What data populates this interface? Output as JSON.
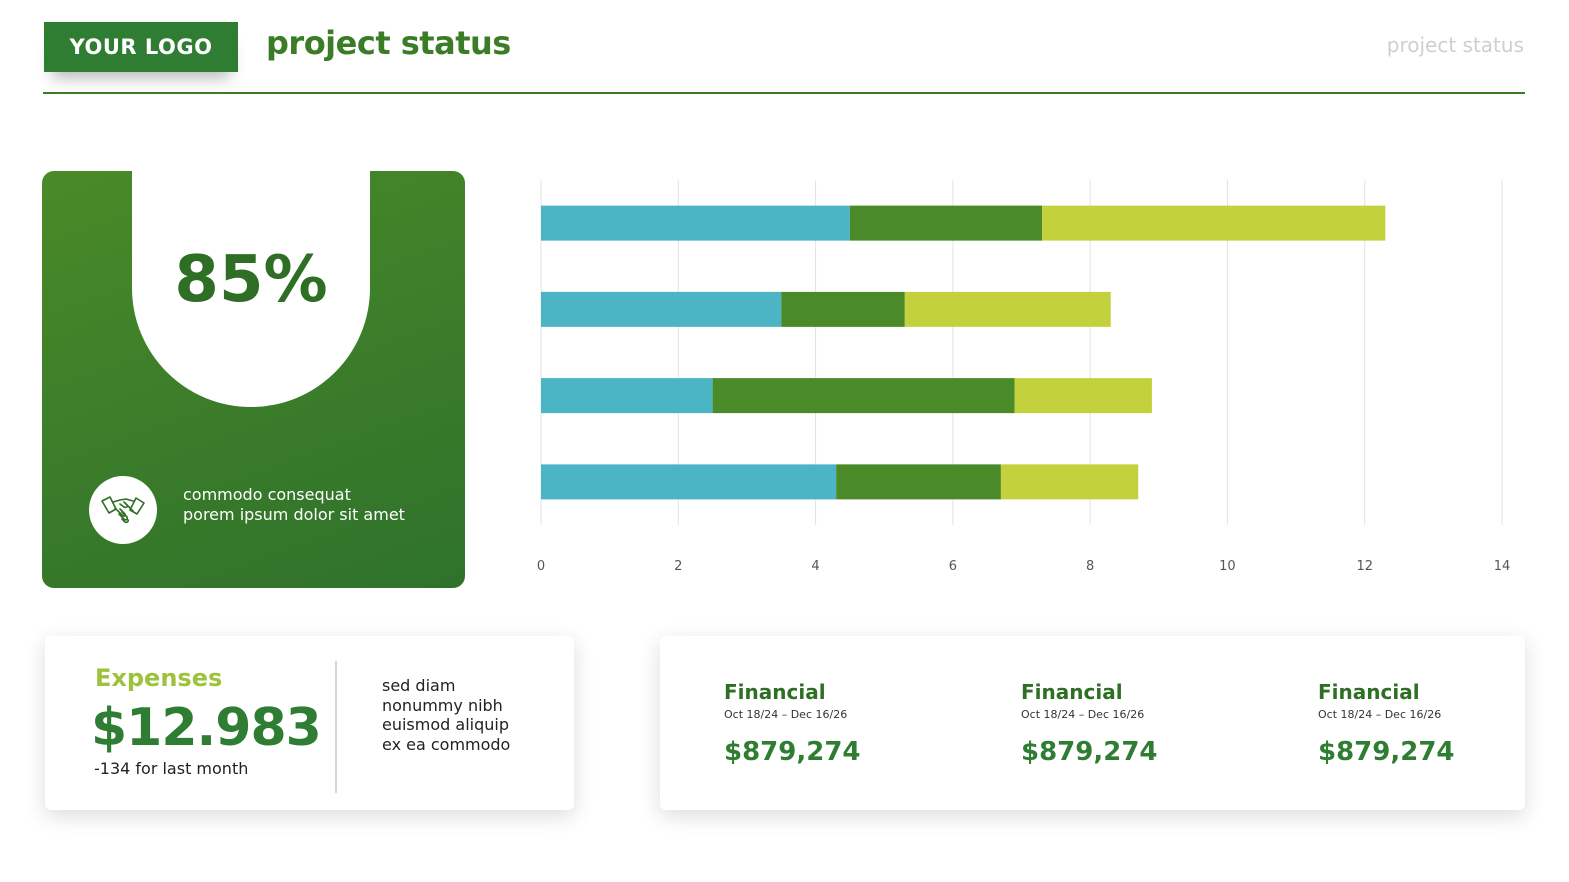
{
  "header": {
    "logo": "YOUR LOGO",
    "title": "project status",
    "right_label": "project status"
  },
  "kpi": {
    "value": "85%",
    "icon": "handshake-icon",
    "text_line1": "commodo consequat",
    "text_line2": "porem ipsum dolor sit amet"
  },
  "chart_data": {
    "type": "bar",
    "orientation": "horizontal",
    "stacked": true,
    "categories": [
      "",
      "",
      "",
      ""
    ],
    "series": [
      {
        "values": [
          4.5,
          3.5,
          2.5,
          4.3
        ],
        "color": "#4bb5c6"
      },
      {
        "values": [
          2.8,
          1.8,
          4.4,
          2.4
        ],
        "color": "#4a8a28"
      },
      {
        "values": [
          5.0,
          3.0,
          2.0,
          2.0
        ],
        "color": "#c3d23c"
      }
    ],
    "xlim": [
      0,
      14
    ],
    "x_ticks": [
      "0",
      "2",
      "4",
      "6",
      "8",
      "10",
      "12",
      "14"
    ],
    "grid": true,
    "title": "",
    "xlabel": "",
    "ylabel": ""
  },
  "expenses": {
    "title": "Expenses",
    "value": "$12.983",
    "subtext": "-134 for last month",
    "notes": [
      "sed diam",
      "nonummy nibh",
      "euismod aliquip",
      "ex ea commodo"
    ]
  },
  "financials": [
    {
      "title": "Financial",
      "dates": "Oct 18/24 – Dec 16/26",
      "value": "$879,274"
    },
    {
      "title": "Financial",
      "dates": "Oct 18/24 – Dec 16/26",
      "value": "$879,274"
    },
    {
      "title": "Financial",
      "dates": "Oct 18/24 – Dec 16/26",
      "value": "$879,274"
    }
  ],
  "colors": {
    "brand_green": "#2f7d32",
    "light_green": "#9dc23b"
  }
}
